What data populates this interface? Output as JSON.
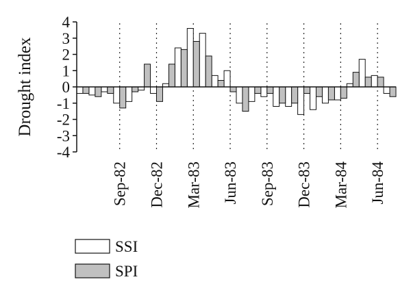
{
  "chart_data": {
    "type": "bar",
    "title": "",
    "xlabel": "",
    "ylabel": "Drought index",
    "ylim": [
      -4,
      4
    ],
    "yticks": [
      4,
      3,
      2,
      1,
      0,
      -1,
      -2,
      -3,
      -4
    ],
    "x_tick_labels": [
      "Sep-82",
      "Dec-82",
      "Mar-83",
      "Jun-83",
      "Sep-83",
      "Dec-83",
      "Mar-84",
      "Jun-84"
    ],
    "x_tick_positions": [
      3.5,
      6.5,
      9.5,
      12.5,
      15.5,
      18.5,
      21.5,
      24.5
    ],
    "grid": "vertical dotted lines at x tick positions",
    "legend_position": "bottom-left",
    "series": [
      {
        "name": "SSI",
        "color": "#ffffff",
        "values": [
          -0.4,
          -0.5,
          -0.3,
          -1.0,
          -0.9,
          -0.2,
          -0.4,
          0.2,
          2.4,
          3.6,
          3.3,
          0.7,
          1.0,
          -1.0,
          -0.9,
          -0.6,
          -1.2,
          -1.2,
          -1.7,
          -1.4,
          -1.0,
          -0.8,
          0.2,
          1.7,
          0.7,
          -0.4
        ]
      },
      {
        "name": "SPI",
        "color": "#c0c0c0",
        "values": [
          -0.4,
          -0.6,
          -0.4,
          -1.3,
          -0.3,
          1.4,
          -0.9,
          1.4,
          2.3,
          2.8,
          1.9,
          0.4,
          -0.3,
          -1.5,
          -0.4,
          -0.4,
          -1.0,
          -1.0,
          -0.4,
          -0.6,
          -0.8,
          -0.7,
          0.9,
          0.6,
          0.6,
          -0.6
        ]
      }
    ]
  }
}
